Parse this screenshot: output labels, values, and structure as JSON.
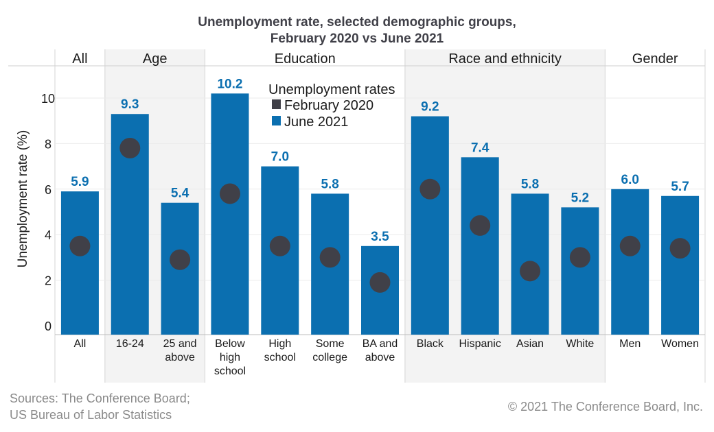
{
  "chart_data": {
    "type": "bar",
    "title": [
      "Unemployment rate, selected demographic groups,",
      "February 2020 vs June 2021"
    ],
    "ylabel": "Unemployment rate (%)",
    "ylim": [
      0,
      11.2
    ],
    "yticks": [
      "0",
      "2",
      "4",
      "6",
      "8",
      "10"
    ],
    "ytick_values": [
      0,
      2,
      4,
      6,
      8,
      10
    ],
    "grid": true,
    "groups": [
      {
        "name": "All",
        "shaded": false,
        "start": 0,
        "count": 1
      },
      {
        "name": "Age",
        "shaded": true,
        "start": 1,
        "count": 2
      },
      {
        "name": "Education",
        "shaded": false,
        "start": 3,
        "count": 4
      },
      {
        "name": "Race and ethnicity",
        "shaded": true,
        "start": 7,
        "count": 4
      },
      {
        "name": "Gender",
        "shaded": false,
        "start": 11,
        "count": 2
      }
    ],
    "categories": [
      [
        "All"
      ],
      [
        "16-24"
      ],
      [
        "25 and",
        "above"
      ],
      [
        "Below",
        "high",
        "school"
      ],
      [
        "High",
        "school"
      ],
      [
        "Some",
        "college"
      ],
      [
        "BA and",
        "above"
      ],
      [
        "Black"
      ],
      [
        "Hispanic"
      ],
      [
        "Asian"
      ],
      [
        "White"
      ],
      [
        "Men"
      ],
      [
        "Women"
      ]
    ],
    "series": [
      {
        "name": "February 2020",
        "type": "dot",
        "color": "#404048",
        "values": [
          3.5,
          7.8,
          2.9,
          5.8,
          3.5,
          3.0,
          1.9,
          6.0,
          4.4,
          2.4,
          3.0,
          3.5,
          3.4
        ]
      },
      {
        "name": "June 2021",
        "type": "bar",
        "color": "#0b6fb0",
        "values": [
          5.9,
          9.3,
          5.4,
          10.2,
          7.0,
          5.8,
          3.5,
          9.2,
          7.4,
          5.8,
          5.2,
          6.0,
          5.7
        ],
        "labels": [
          "5.9",
          "9.3",
          "5.4",
          "10.2",
          "7.0",
          "5.8",
          "3.5",
          "9.2",
          "7.4",
          "5.8",
          "5.2",
          "6.0",
          "5.7"
        ]
      }
    ],
    "legend": {
      "title": "Unemployment rates",
      "placement": "top-center",
      "entries": [
        "February 2020",
        "June 2021"
      ]
    }
  },
  "footer": {
    "sources_line1": "Sources: The Conference Board;",
    "sources_line2": "US Bureau of Labor Statistics",
    "copyright": "© 2021 The Conference Board, Inc."
  }
}
